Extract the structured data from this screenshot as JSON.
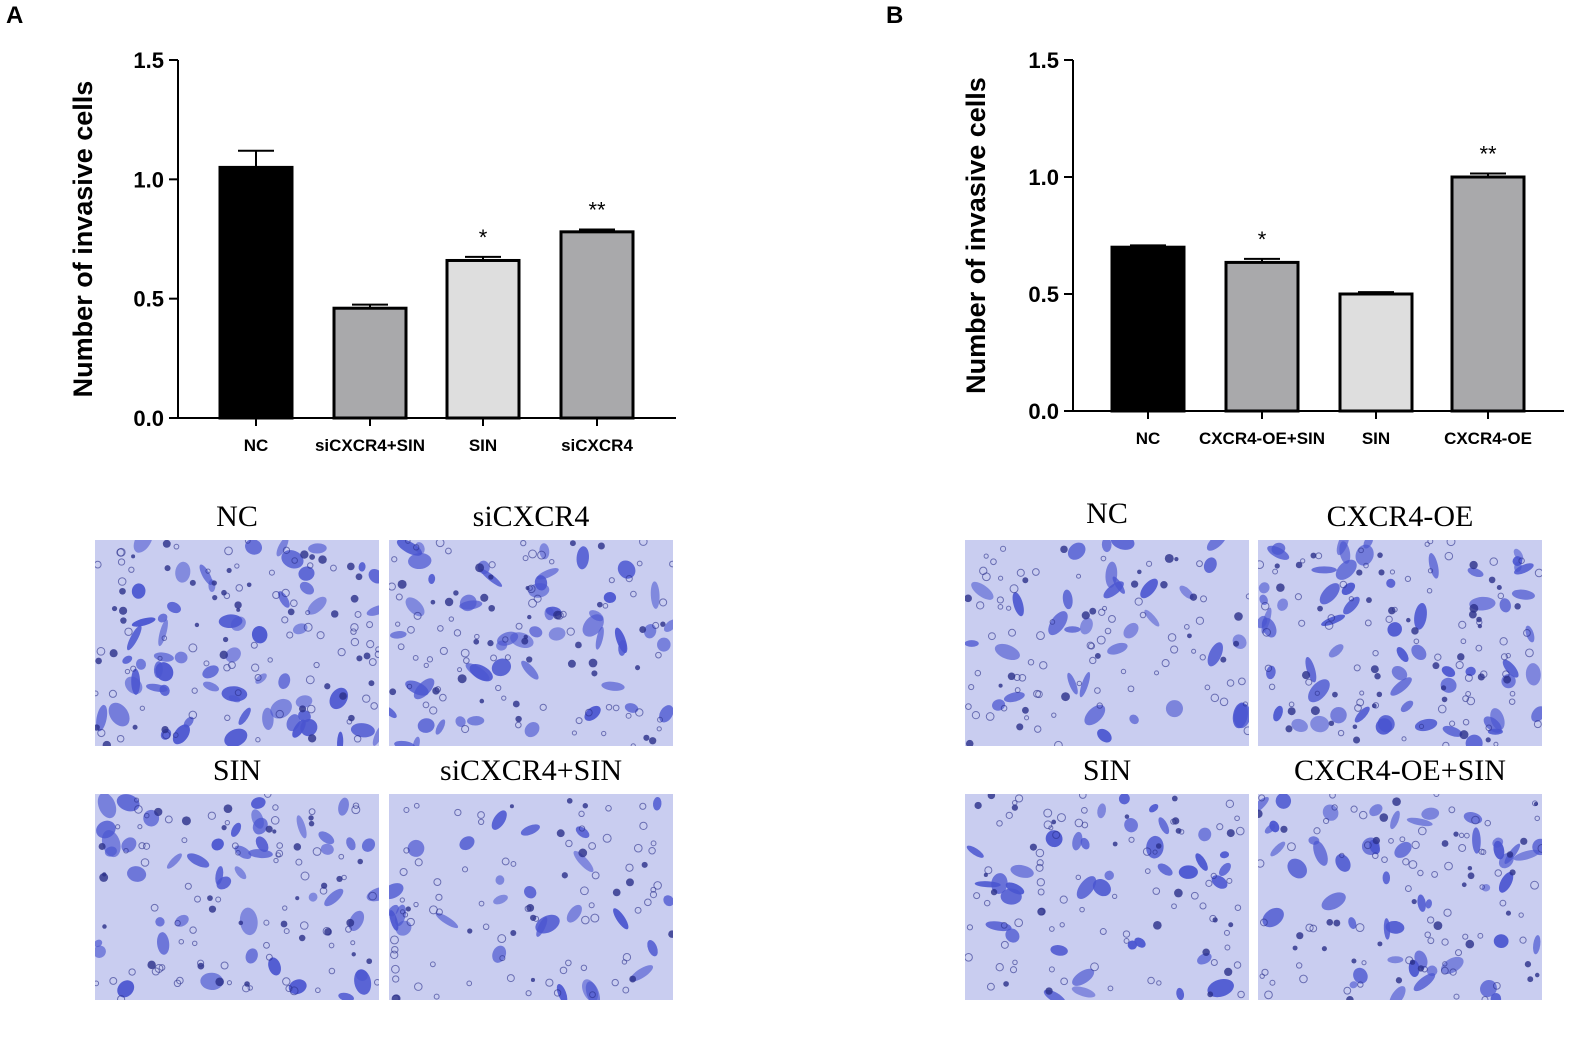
{
  "panels": [
    {
      "letter": "A",
      "chart_data": {
        "type": "bar",
        "ylabel": "Number of invasive cells",
        "xlabel": "",
        "ylim": [
          0,
          1.5
        ],
        "yticks": [
          "0.0",
          "0.5",
          "1.0",
          "1.5"
        ],
        "categories": [
          "NC",
          "siCXCR4+SIN",
          "SIN",
          "siCXCR4"
        ],
        "values": [
          1.05,
          0.46,
          0.66,
          0.78
        ],
        "errors": [
          0.07,
          0.015,
          0.015,
          0.01
        ],
        "significance": [
          "",
          "",
          "*",
          "**"
        ],
        "colors": [
          "#000000",
          "#a9a9ab",
          "#dedede",
          "#a9a9ab"
        ],
        "grid": false
      },
      "images": [
        {
          "label": "NC",
          "density": 1.0
        },
        {
          "label": "siCXCR4",
          "density": 0.85
        },
        {
          "label": "SIN",
          "density": 0.75
        },
        {
          "label": "siCXCR4+SIN",
          "density": 0.45
        }
      ]
    },
    {
      "letter": "B",
      "chart_data": {
        "type": "bar",
        "ylabel": "Number of invasive cells",
        "xlabel": "",
        "ylim": [
          0,
          1.5
        ],
        "yticks": [
          "0.0",
          "0.5",
          "1.0",
          "1.5"
        ],
        "categories": [
          "NC",
          "CXCR4-OE+SIN",
          "SIN",
          "CXCR4-OE"
        ],
        "values": [
          0.7,
          0.635,
          0.5,
          1.0
        ],
        "errors": [
          0.008,
          0.015,
          0.008,
          0.015
        ],
        "significance": [
          "",
          "*",
          "",
          "**"
        ],
        "colors": [
          "#000000",
          "#a9a9ab",
          "#dedede",
          "#a9a9ab"
        ],
        "grid": false
      },
      "images": [
        {
          "label": "NC",
          "density": 0.55
        },
        {
          "label": "CXCR4-OE",
          "density": 1.0
        },
        {
          "label": "SIN",
          "density": 0.6
        },
        {
          "label": "CXCR4-OE+SIN",
          "density": 0.8
        }
      ]
    }
  ],
  "colors": {
    "stain_bg": "#c9cdf0",
    "stain_cell": "#4a55d0",
    "stain_dark": "#2a2f8a"
  }
}
